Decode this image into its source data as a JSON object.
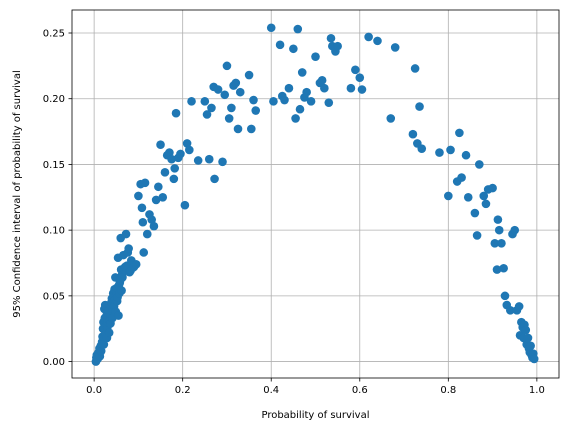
{
  "chart_data": {
    "type": "scatter",
    "title": "",
    "xlabel": "Probability of survival",
    "ylabel": "95% Confidence interval of probability of survival",
    "xlim": [
      -0.05,
      1.05
    ],
    "ylim": [
      -0.0125,
      0.2675
    ],
    "xticks": [
      0.0,
      0.2,
      0.4,
      0.6,
      0.8,
      1.0
    ],
    "xtick_labels": [
      "0.0",
      "0.2",
      "0.4",
      "0.6",
      "0.8",
      "1.0"
    ],
    "yticks": [
      0.0,
      0.05,
      0.1,
      0.15,
      0.2,
      0.25
    ],
    "ytick_labels": [
      "0.00",
      "0.05",
      "0.10",
      "0.15",
      "0.20",
      "0.25"
    ],
    "grid": true,
    "marker_color": "#1f77b4",
    "series": [
      {
        "points": [
          [
            0.004,
            0.0
          ],
          [
            0.005,
            0.003
          ],
          [
            0.006,
            0.005
          ],
          [
            0.008,
            0.002
          ],
          [
            0.01,
            0.007
          ],
          [
            0.012,
            0.01
          ],
          [
            0.013,
            0.004
          ],
          [
            0.015,
            0.012
          ],
          [
            0.016,
            0.008
          ],
          [
            0.018,
            0.015
          ],
          [
            0.019,
            0.019
          ],
          [
            0.02,
            0.025
          ],
          [
            0.021,
            0.03
          ],
          [
            0.022,
            0.013
          ],
          [
            0.023,
            0.04
          ],
          [
            0.024,
            0.033
          ],
          [
            0.025,
            0.043
          ],
          [
            0.026,
            0.021
          ],
          [
            0.027,
            0.028
          ],
          [
            0.028,
            0.035
          ],
          [
            0.029,
            0.018
          ],
          [
            0.03,
            0.026
          ],
          [
            0.031,
            0.03
          ],
          [
            0.032,
            0.037
          ],
          [
            0.033,
            0.039
          ],
          [
            0.034,
            0.022
          ],
          [
            0.035,
            0.031
          ],
          [
            0.036,
            0.043
          ],
          [
            0.037,
            0.029
          ],
          [
            0.038,
            0.036
          ],
          [
            0.039,
            0.045
          ],
          [
            0.04,
            0.048
          ],
          [
            0.041,
            0.033
          ],
          [
            0.042,
            0.04
          ],
          [
            0.043,
            0.052
          ],
          [
            0.044,
            0.05
          ],
          [
            0.045,
            0.042
          ],
          [
            0.046,
            0.055
          ],
          [
            0.047,
            0.047
          ],
          [
            0.048,
            0.064
          ],
          [
            0.049,
            0.038
          ],
          [
            0.05,
            0.053
          ],
          [
            0.051,
            0.056
          ],
          [
            0.052,
            0.046
          ],
          [
            0.053,
            0.049
          ],
          [
            0.054,
            0.079
          ],
          [
            0.055,
            0.035
          ],
          [
            0.056,
            0.058
          ],
          [
            0.057,
            0.052
          ],
          [
            0.058,
            0.06
          ],
          [
            0.059,
            0.062
          ],
          [
            0.06,
            0.094
          ],
          [
            0.061,
            0.07
          ],
          [
            0.062,
            0.054
          ],
          [
            0.063,
            0.066
          ],
          [
            0.064,
            0.064
          ],
          [
            0.066,
            0.081
          ],
          [
            0.068,
            0.07
          ],
          [
            0.07,
            0.072
          ],
          [
            0.072,
            0.097
          ],
          [
            0.074,
            0.073
          ],
          [
            0.076,
            0.083
          ],
          [
            0.078,
            0.086
          ],
          [
            0.08,
            0.068
          ],
          [
            0.082,
            0.069
          ],
          [
            0.084,
            0.077
          ],
          [
            0.086,
            0.071
          ],
          [
            0.09,
            0.072
          ],
          [
            0.095,
            0.074
          ],
          [
            0.1,
            0.126
          ],
          [
            0.105,
            0.135
          ],
          [
            0.108,
            0.117
          ],
          [
            0.11,
            0.106
          ],
          [
            0.112,
            0.083
          ],
          [
            0.115,
            0.136
          ],
          [
            0.12,
            0.097
          ],
          [
            0.125,
            0.112
          ],
          [
            0.13,
            0.108
          ],
          [
            0.135,
            0.103
          ],
          [
            0.14,
            0.123
          ],
          [
            0.145,
            0.133
          ],
          [
            0.15,
            0.165
          ],
          [
            0.155,
            0.125
          ],
          [
            0.16,
            0.144
          ],
          [
            0.165,
            0.157
          ],
          [
            0.17,
            0.159
          ],
          [
            0.175,
            0.154
          ],
          [
            0.18,
            0.139
          ],
          [
            0.182,
            0.147
          ],
          [
            0.185,
            0.189
          ],
          [
            0.19,
            0.155
          ],
          [
            0.195,
            0.158
          ],
          [
            0.205,
            0.119
          ],
          [
            0.21,
            0.166
          ],
          [
            0.215,
            0.161
          ],
          [
            0.22,
            0.198
          ],
          [
            0.235,
            0.153
          ],
          [
            0.25,
            0.198
          ],
          [
            0.255,
            0.188
          ],
          [
            0.26,
            0.154
          ],
          [
            0.265,
            0.193
          ],
          [
            0.27,
            0.209
          ],
          [
            0.272,
            0.139
          ],
          [
            0.28,
            0.207
          ],
          [
            0.29,
            0.152
          ],
          [
            0.295,
            0.203
          ],
          [
            0.3,
            0.225
          ],
          [
            0.305,
            0.185
          ],
          [
            0.31,
            0.193
          ],
          [
            0.315,
            0.21
          ],
          [
            0.32,
            0.212
          ],
          [
            0.325,
            0.177
          ],
          [
            0.33,
            0.205
          ],
          [
            0.35,
            0.218
          ],
          [
            0.355,
            0.177
          ],
          [
            0.36,
            0.199
          ],
          [
            0.365,
            0.191
          ],
          [
            0.4,
            0.254
          ],
          [
            0.405,
            0.198
          ],
          [
            0.42,
            0.241
          ],
          [
            0.425,
            0.202
          ],
          [
            0.43,
            0.199
          ],
          [
            0.44,
            0.208
          ],
          [
            0.45,
            0.238
          ],
          [
            0.455,
            0.185
          ],
          [
            0.46,
            0.253
          ],
          [
            0.465,
            0.192
          ],
          [
            0.47,
            0.22
          ],
          [
            0.475,
            0.201
          ],
          [
            0.48,
            0.205
          ],
          [
            0.49,
            0.198
          ],
          [
            0.5,
            0.232
          ],
          [
            0.51,
            0.212
          ],
          [
            0.515,
            0.214
          ],
          [
            0.52,
            0.208
          ],
          [
            0.53,
            0.197
          ],
          [
            0.535,
            0.246
          ],
          [
            0.538,
            0.24
          ],
          [
            0.545,
            0.236
          ],
          [
            0.55,
            0.24
          ],
          [
            0.58,
            0.208
          ],
          [
            0.59,
            0.222
          ],
          [
            0.6,
            0.216
          ],
          [
            0.605,
            0.207
          ],
          [
            0.62,
            0.247
          ],
          [
            0.64,
            0.244
          ],
          [
            0.67,
            0.185
          ],
          [
            0.68,
            0.239
          ],
          [
            0.72,
            0.173
          ],
          [
            0.725,
            0.223
          ],
          [
            0.73,
            0.166
          ],
          [
            0.735,
            0.194
          ],
          [
            0.74,
            0.162
          ],
          [
            0.78,
            0.159
          ],
          [
            0.8,
            0.126
          ],
          [
            0.805,
            0.161
          ],
          [
            0.82,
            0.137
          ],
          [
            0.825,
            0.174
          ],
          [
            0.83,
            0.14
          ],
          [
            0.84,
            0.157
          ],
          [
            0.845,
            0.125
          ],
          [
            0.86,
            0.113
          ],
          [
            0.865,
            0.096
          ],
          [
            0.87,
            0.15
          ],
          [
            0.88,
            0.126
          ],
          [
            0.885,
            0.12
          ],
          [
            0.89,
            0.131
          ],
          [
            0.9,
            0.132
          ],
          [
            0.905,
            0.09
          ],
          [
            0.91,
            0.07
          ],
          [
            0.912,
            0.108
          ],
          [
            0.915,
            0.1
          ],
          [
            0.92,
            0.09
          ],
          [
            0.925,
            0.071
          ],
          [
            0.928,
            0.05
          ],
          [
            0.932,
            0.043
          ],
          [
            0.94,
            0.039
          ],
          [
            0.945,
            0.097
          ],
          [
            0.95,
            0.1
          ],
          [
            0.955,
            0.039
          ],
          [
            0.96,
            0.042
          ],
          [
            0.962,
            0.02
          ],
          [
            0.965,
            0.03
          ],
          [
            0.968,
            0.026
          ],
          [
            0.97,
            0.018
          ],
          [
            0.972,
            0.028
          ],
          [
            0.975,
            0.024
          ],
          [
            0.977,
            0.013
          ],
          [
            0.98,
            0.018
          ],
          [
            0.982,
            0.01
          ],
          [
            0.984,
            0.007
          ],
          [
            0.986,
            0.012
          ],
          [
            0.988,
            0.005
          ],
          [
            0.99,
            0.003
          ],
          [
            0.992,
            0.006
          ],
          [
            0.994,
            0.002
          ]
        ]
      }
    ]
  }
}
